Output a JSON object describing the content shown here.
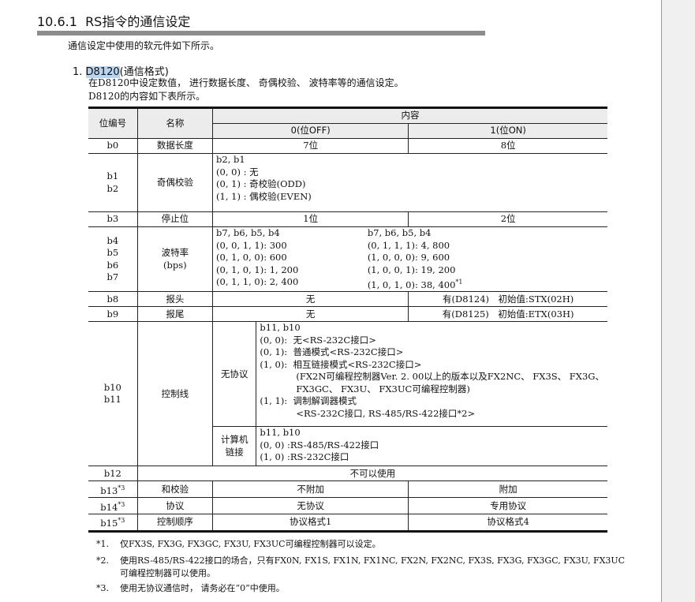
{
  "section_number": "10.6.1",
  "section_title": "RS指令的通信设定",
  "intro": "通信设定中使用的软元件如下所示。",
  "item": {
    "number": "1.",
    "device": "D8120",
    "title": "(通信格式)"
  },
  "desc1": "在D8120中设定数值， 进行数据长度、 奇偶校验、 波特率等的通信设定。",
  "desc2": "D8120的内容如下表所示。",
  "table": {
    "headers": {
      "bit": "位编号",
      "name": "名称",
      "content": "内容",
      "off": "0(位OFF)",
      "on": "1(位ON)"
    },
    "rows": [
      {
        "bit": "b0",
        "name": "数据长度",
        "off": "7位",
        "on": "8位"
      },
      {
        "bit": "b1\nb2",
        "name": "奇偶校验",
        "text": [
          "b2, b1",
          "(0, 0) : 无",
          "(0, 1) : 奇校验(ODD)",
          "(1, 1) : 偶校验(EVEN)"
        ]
      },
      {
        "bit": "b3",
        "name": "停止位",
        "off": "1位",
        "on": "2位"
      },
      {
        "bit": "b4\nb5\nb6\nb7",
        "name": "波特率\n(bps)",
        "off_lines": [
          "b7, b6, b5, b4",
          "(0, 0, 1, 1):  300",
          "(0, 1, 0, 0):  600",
          "(0, 1, 0, 1):  1, 200",
          "(0, 1, 1, 0):  2, 400"
        ],
        "on_lines": [
          "b7, b6, b5, b4",
          "(0, 1, 1, 1):  4, 800",
          "(1, 0, 0, 0):  9, 600",
          "(1, 0, 0, 1):  19, 200",
          "(1, 0, 1, 0):  38, 400"
        ],
        "on_note": "*1"
      },
      {
        "bit": "b8",
        "name": "报头",
        "off": "无",
        "on": "有(D8124)　初始值:STX(02H)"
      },
      {
        "bit": "b9",
        "name": "报尾",
        "off": "无",
        "on": "有(D8125)　初始值:ETX(03H)"
      },
      {
        "bit": "b10\nb11",
        "name": "控制线",
        "sub1": {
          "label": "无协议",
          "lines": [
            "b11, b10",
            "(0, 0):  无<RS-232C接口>",
            "(0, 1):  普通模式<RS-232C接口>",
            "(1, 0):  相互链接模式<RS-232C接口>",
            "　　　　(FX2N可编程控制器Ver. 2. 00以上的版本以及FX2NC、 FX3S、 FX3G、",
            "　　　　FX3GC、 FX3U、 FX3UC可编程控制器)",
            "(1, 1):  调制解调器模式",
            "　　　　<RS-232C接口, RS-485/RS-422接口*2>"
          ]
        },
        "sub2": {
          "label": "计算机\n链接",
          "lines": [
            "b11, b10",
            "(0, 0) :RS-485/RS-422接口",
            "(1, 0) :RS-232C接口"
          ]
        }
      },
      {
        "bit": "b12",
        "text": "不可以使用"
      },
      {
        "bit": "b13",
        "note": "*3",
        "name": "和校验",
        "off": "不附加",
        "on": "附加"
      },
      {
        "bit": "b14",
        "note": "*3",
        "name": "协议",
        "off": "无协议",
        "on": "专用协议"
      },
      {
        "bit": "b15",
        "note": "*3",
        "name": "控制顺序",
        "off": "协议格式1",
        "on": "协议格式4"
      }
    ]
  },
  "footnotes": [
    {
      "mark": "*1.",
      "text": "仅FX3S, FX3G, FX3GC, FX3U, FX3UC可编程控制器可以设定。"
    },
    {
      "mark": "*2.",
      "text": "使用RS-485/RS-422接口的场合，只有FX0N, FX1S, FX1N, FX1NC, FX2N, FX2NC, FX3S, FX3G, FX3GC, FX3U, FX3UC可编程控制器可以使用。"
    },
    {
      "mark": "*3.",
      "text": "使用无协议通信时， 请务必在“0”中使用。"
    }
  ]
}
